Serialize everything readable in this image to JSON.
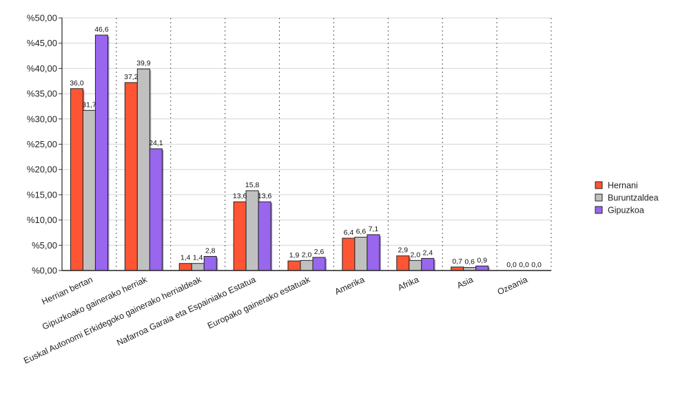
{
  "chart_data": {
    "type": "bar",
    "categories": [
      "Herrian bertan",
      "Gipuzkoako gainerako herriak",
      "Euskal Autonomi Erkidegoko gainerako herrialdeak",
      "Nafarroa Garaia eta Espainiako Estatua",
      "Europako gainerako estatuak",
      "Amerika",
      "Afrika",
      "Asia",
      "Ozeania"
    ],
    "series": [
      {
        "name": "Hernani",
        "color": "#ff5533",
        "values": [
          36.0,
          37.2,
          1.4,
          13.6,
          1.9,
          6.4,
          2.9,
          0.7,
          0.0
        ],
        "labels": [
          "36,0",
          "37,2",
          "1,4",
          "13,6",
          "1,9",
          "6,4",
          "2,9",
          "0,7",
          "0,0"
        ]
      },
      {
        "name": "Buruntzaldea",
        "color": "#c0c0c0",
        "values": [
          31.7,
          39.9,
          1.4,
          15.8,
          2.0,
          6.6,
          2.0,
          0.6,
          0.0
        ],
        "labels": [
          "31,7",
          "39,9",
          "1,4",
          "15,8",
          "2,0",
          "6,6",
          "2,0",
          "0,6",
          "0,0"
        ]
      },
      {
        "name": "Gipuzkoa",
        "color": "#9966ee",
        "values": [
          46.6,
          24.1,
          2.8,
          13.6,
          2.6,
          7.1,
          2.4,
          0.9,
          0.0
        ],
        "labels": [
          "46,6",
          "24,1",
          "2,8",
          "13,6",
          "2,6",
          "7,1",
          "2,4",
          "0,9",
          "0,0"
        ]
      }
    ],
    "ylim": [
      0,
      50
    ],
    "yticks": [
      0,
      5,
      10,
      15,
      20,
      25,
      30,
      35,
      40,
      45,
      50
    ],
    "ytick_labels": [
      "%0,00",
      "%5,00",
      "%10,00",
      "%15,00",
      "%20,00",
      "%25,00",
      "%30,00",
      "%35,00",
      "%40,00",
      "%45,00",
      "%50,00"
    ],
    "grid": true,
    "legend_position": "right"
  }
}
